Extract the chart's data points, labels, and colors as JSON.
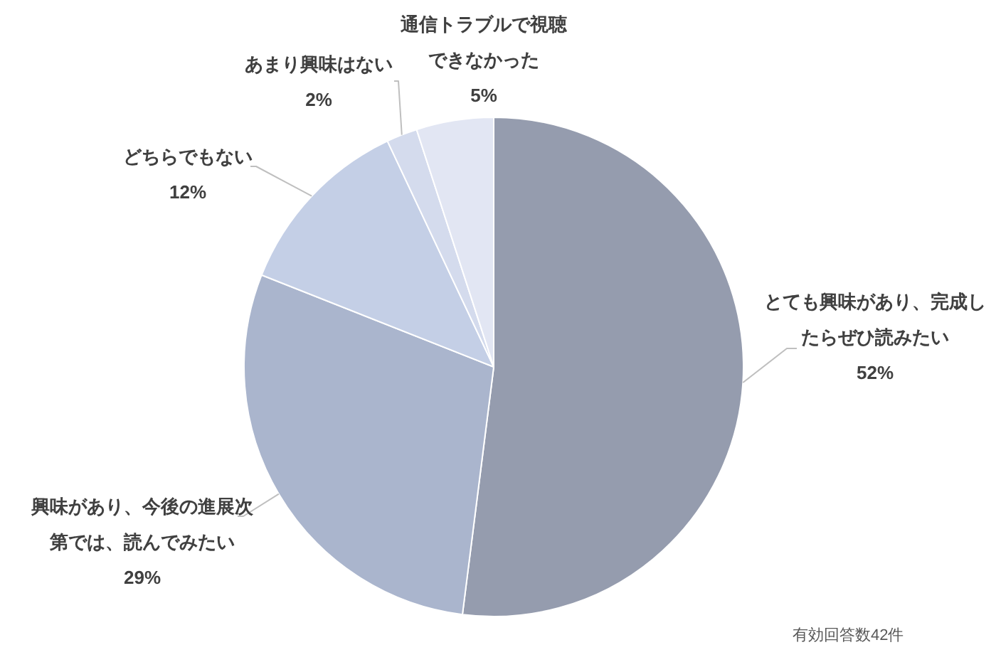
{
  "chart_data": {
    "type": "pie",
    "categories": [
      "とても興味があり、完成したらぜひ読みたい",
      "興味があり、今後の進展次第では、読んでみたい",
      "どちらでもない",
      "あまり興味はない",
      "通信トラブルで視聴できなかった"
    ],
    "values": [
      52,
      29,
      12,
      2,
      5
    ],
    "colors": [
      "#959cae",
      "#aab5cd",
      "#c4cfe6",
      "#d4dbed",
      "#e2e6f3"
    ],
    "value_labels": [
      "52%",
      "29%",
      "12%",
      "2%",
      "5%"
    ],
    "annotations": [
      "有効回答数42件"
    ]
  }
}
